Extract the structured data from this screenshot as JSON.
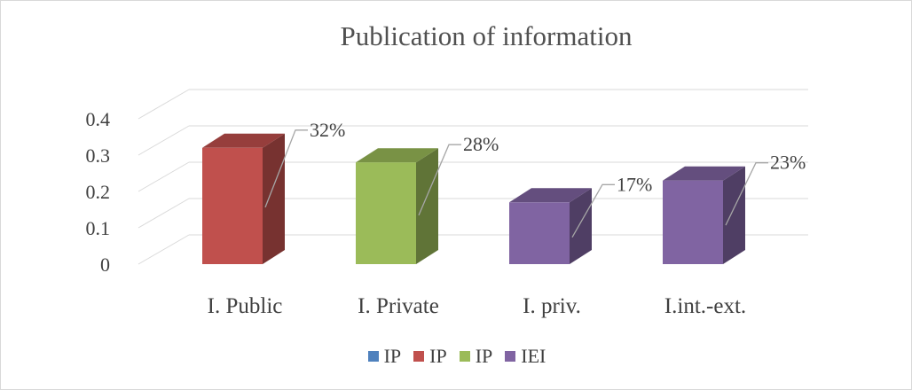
{
  "chart_data": {
    "type": "bar",
    "title": "Publication of information",
    "categories": [
      "I. Public",
      "I. Private",
      "I. priv.",
      "I.int.-ext."
    ],
    "values": [
      0.32,
      0.28,
      0.17,
      0.23
    ],
    "data_labels": [
      "32%",
      "28%",
      "17%",
      "23%"
    ],
    "bar_colors": [
      "#c0504d",
      "#9bbb59",
      "#8064a2",
      "#8064a2"
    ],
    "yticks": [
      "0",
      "0.1",
      "0.2",
      "0.3",
      "0.4"
    ],
    "ylim": [
      0,
      0.4
    ],
    "grid": true,
    "three_d": true,
    "legend_position": "bottom",
    "legend": [
      {
        "label": "IP",
        "color": "#4f81bd"
      },
      {
        "label": "IP",
        "color": "#c0504d"
      },
      {
        "label": "IP",
        "color": "#9bbb59"
      },
      {
        "label": "IEI",
        "color": "#8064a2"
      }
    ]
  }
}
